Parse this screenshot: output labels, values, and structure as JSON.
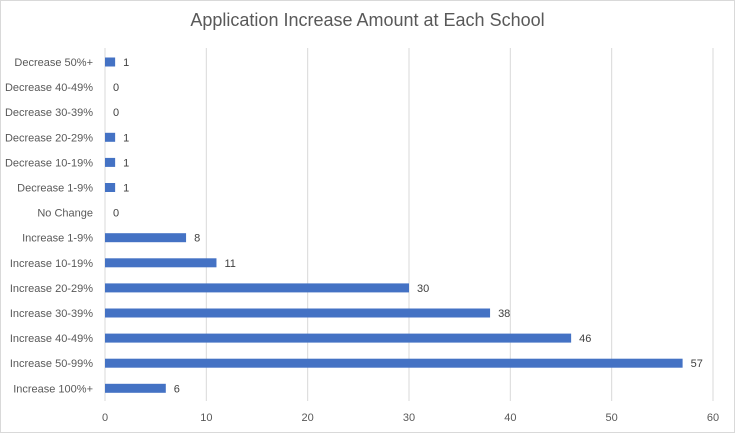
{
  "chart_data": {
    "type": "bar",
    "orientation": "horizontal",
    "title": "Application Increase Amount at Each School",
    "categories": [
      "Decrease 50%+",
      "Decrease 40-49%",
      "Decrease 30-39%",
      "Decrease 20-29%",
      "Decrease 10-19%",
      "Decrease 1-9%",
      "No Change",
      "Increase 1-9%",
      "Increase 10-19%",
      "Increase 20-29%",
      "Increase 30-39%",
      "Increase 40-49%",
      "Increase 50-99%",
      "Increase 100%+"
    ],
    "values": [
      1,
      0,
      0,
      1,
      1,
      1,
      0,
      8,
      11,
      30,
      38,
      46,
      57,
      6
    ],
    "xlim": [
      0,
      60
    ],
    "x_ticks": [
      0,
      10,
      20,
      30,
      40,
      50,
      60
    ],
    "grid": true,
    "data_labels": true,
    "bar_color": "#4472c4",
    "grid_color": "#d9d9d9"
  }
}
